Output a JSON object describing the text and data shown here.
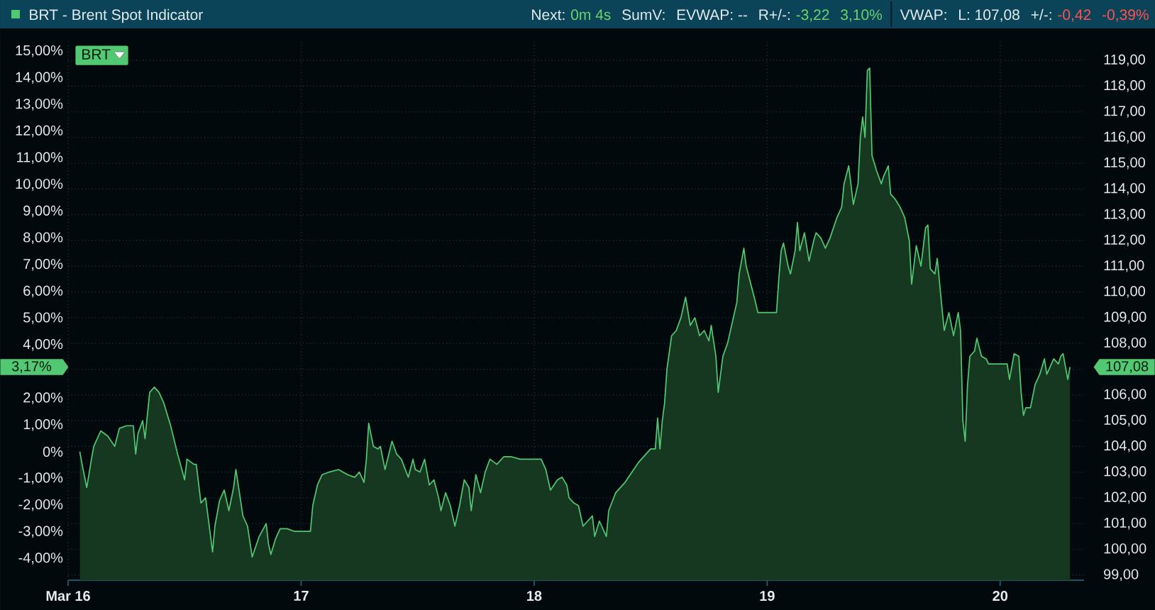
{
  "chart_data": {
    "type": "area",
    "title": "BRT - Brent Spot Indicator",
    "annotations": [
      "Next:",
      "0m 4s",
      "SumV:",
      "EVWAP: --",
      "R+/-:",
      "-3,22",
      "3,10%",
      "VWAP:",
      "L: 107,08",
      "+/-:",
      "-0,42",
      "-0,39%",
      "3,17%",
      "107,08"
    ],
    "x": [
      16.05,
      16.06,
      16.08,
      16.1,
      16.11,
      16.14,
      16.17,
      16.2,
      16.22,
      16.25,
      16.28,
      16.29,
      16.3,
      16.32,
      16.33,
      16.35,
      16.37,
      16.39,
      16.41,
      16.44,
      16.47,
      16.5,
      16.51,
      16.54,
      16.55,
      16.57,
      16.59,
      16.62,
      16.63,
      16.65,
      16.67,
      16.69,
      16.71,
      16.72,
      16.74,
      16.75,
      16.77,
      16.79,
      16.82,
      16.85,
      16.86,
      16.87,
      16.89,
      16.91,
      16.94,
      16.97,
      17.04,
      17.05,
      17.07,
      17.09,
      17.12,
      17.16,
      17.2,
      17.23,
      17.25,
      17.27,
      17.28,
      17.29,
      17.31,
      17.33,
      17.34,
      17.36,
      17.39,
      17.41,
      17.43,
      17.46,
      17.48,
      17.49,
      17.51,
      17.53,
      17.55,
      17.57,
      17.59,
      17.6,
      17.62,
      17.64,
      17.66,
      17.68,
      17.7,
      17.72,
      17.73,
      17.75,
      17.77,
      17.79,
      17.81,
      17.84,
      17.87,
      17.9,
      17.94,
      18.03,
      18.05,
      18.07,
      18.1,
      18.12,
      18.14,
      18.15,
      18.17,
      18.19,
      18.21,
      18.23,
      18.25,
      18.26,
      18.28,
      18.31,
      18.32,
      18.35,
      18.39,
      18.42,
      18.45,
      18.48,
      18.5,
      18.52,
      18.53,
      18.54,
      18.55,
      18.56,
      18.57,
      18.59,
      18.61,
      18.63,
      18.65,
      18.67,
      18.69,
      18.71,
      18.73,
      18.75,
      18.76,
      18.78,
      18.79,
      18.81,
      18.83,
      18.85,
      18.87,
      18.88,
      18.9,
      18.91,
      18.93,
      18.95,
      18.96,
      19.04,
      19.05,
      19.06,
      19.07,
      19.09,
      19.1,
      19.12,
      19.13,
      19.14,
      19.16,
      19.18,
      19.2,
      19.21,
      19.23,
      19.25,
      19.27,
      19.3,
      19.32,
      19.33,
      19.35,
      19.37,
      19.39,
      19.4,
      19.41,
      19.42,
      19.43,
      19.44,
      19.45,
      19.47,
      19.49,
      19.5,
      19.52,
      19.53,
      19.55,
      19.57,
      19.59,
      19.61,
      19.62,
      19.64,
      19.66,
      19.68,
      19.69,
      19.7,
      19.72,
      19.73,
      19.75,
      19.76,
      19.78,
      19.8,
      19.82,
      19.83,
      19.84,
      19.85,
      19.86,
      19.87,
      19.89,
      19.9,
      19.92,
      19.94,
      19.95,
      20.03,
      20.04,
      20.06,
      20.08,
      20.09,
      20.1,
      20.11,
      20.13,
      20.15,
      20.17,
      20.19,
      20.2,
      20.23,
      20.25,
      20.26,
      20.27,
      20.29,
      20.3
    ],
    "series": [
      {
        "name": "BRT",
        "color": "#52c873",
        "axis": "y2",
        "values": [
          103.8,
          103.3,
          102.4,
          103.5,
          104.0,
          104.6,
          104.4,
          104.0,
          104.7,
          104.8,
          104.8,
          103.7,
          104.5,
          105.0,
          104.3,
          106.1,
          106.3,
          106.1,
          105.7,
          104.8,
          103.7,
          102.7,
          103.5,
          103.3,
          103.3,
          101.8,
          102.0,
          99.9,
          100.9,
          101.9,
          102.3,
          101.5,
          102.4,
          103.1,
          101.9,
          101.3,
          100.9,
          99.7,
          100.5,
          101.0,
          100.2,
          99.8,
          100.4,
          100.8,
          100.8,
          100.7,
          100.7,
          101.7,
          102.5,
          102.9,
          103.0,
          103.1,
          102.9,
          102.8,
          103.0,
          102.6,
          103.5,
          104.9,
          104.0,
          103.9,
          104.0,
          103.1,
          104.2,
          103.7,
          103.5,
          102.8,
          103.5,
          103.1,
          103.0,
          103.5,
          102.5,
          102.7,
          102.0,
          101.5,
          102.2,
          101.7,
          100.9,
          101.7,
          102.7,
          102.4,
          101.5,
          102.9,
          102.2,
          103.0,
          103.5,
          103.3,
          103.6,
          103.6,
          103.5,
          103.5,
          103.1,
          102.3,
          102.7,
          102.8,
          102.5,
          102.0,
          101.8,
          101.7,
          100.9,
          101.1,
          101.3,
          100.5,
          101.1,
          100.5,
          101.5,
          102.2,
          102.6,
          103.0,
          103.4,
          103.7,
          103.9,
          103.9,
          105.1,
          103.9,
          105.0,
          105.7,
          107.0,
          108.3,
          108.5,
          109.0,
          109.8,
          108.7,
          109.0,
          108.3,
          108.5,
          108.1,
          108.7,
          107.5,
          106.1,
          107.5,
          108.0,
          108.8,
          109.6,
          110.7,
          111.7,
          111.0,
          110.3,
          109.6,
          109.2,
          109.2,
          110.5,
          111.6,
          111.9,
          111.0,
          110.7,
          111.6,
          112.7,
          111.6,
          112.3,
          111.2,
          112.0,
          112.3,
          112.1,
          111.7,
          112.1,
          112.9,
          113.3,
          114.2,
          114.9,
          113.4,
          114.2,
          116.0,
          116.8,
          116.0,
          118.6,
          118.7,
          115.3,
          114.7,
          114.2,
          114.5,
          114.9,
          113.8,
          113.6,
          113.3,
          112.9,
          112.0,
          110.3,
          111.8,
          111.0,
          112.5,
          112.6,
          110.9,
          110.7,
          111.3,
          109.4,
          108.5,
          109.2,
          108.3,
          109.2,
          108.5,
          105.0,
          104.2,
          106.4,
          107.5,
          107.7,
          108.2,
          107.5,
          107.4,
          107.2,
          107.2,
          106.6,
          107.6,
          107.5,
          106.1,
          105.2,
          105.5,
          105.5,
          106.4,
          106.8,
          107.4,
          106.8,
          107.4,
          107.2,
          107.5,
          107.6,
          106.6,
          107.08
        ]
      }
    ],
    "xlim": [
      16,
      20.36
    ],
    "xticks": [
      {
        "value": 16,
        "label": "Mar 16"
      },
      17,
      18,
      19,
      20
    ],
    "ylim": [
      -4.81,
      15.43
    ],
    "yticks": [
      {
        "value": -4,
        "label": "-4,00%"
      },
      {
        "value": -3,
        "label": "-3,00%"
      },
      {
        "value": -2,
        "label": "-2,00%"
      },
      {
        "value": -1,
        "label": "-1,00%"
      },
      {
        "value": 0,
        "label": "0%"
      },
      {
        "value": 1,
        "label": "1,00%"
      },
      {
        "value": 2,
        "label": "2,00%"
      },
      {
        "value": 4,
        "label": "4,00%"
      },
      {
        "value": 5,
        "label": "5,00%"
      },
      {
        "value": 6,
        "label": "6,00%"
      },
      {
        "value": 7,
        "label": "7,00%"
      },
      {
        "value": 8,
        "label": "8,00%"
      },
      {
        "value": 9,
        "label": "9,00%"
      },
      {
        "value": 10,
        "label": "10,00%"
      },
      {
        "value": 11,
        "label": "11,00%"
      },
      {
        "value": 12,
        "label": "12,00%"
      },
      {
        "value": 13,
        "label": "13,00%"
      },
      {
        "value": 14,
        "label": "14,00%"
      },
      {
        "value": 15,
        "label": "15,00%"
      }
    ],
    "y2lim": [
      98.8,
      119.8
    ],
    "y2ticks": [
      {
        "value": 99,
        "label": "99,00"
      },
      {
        "value": 100,
        "label": "100,00"
      },
      {
        "value": 101,
        "label": "101,00"
      },
      {
        "value": 102,
        "label": "102,00"
      },
      {
        "value": 103,
        "label": "103,00"
      },
      {
        "value": 104,
        "label": "104,00"
      },
      {
        "value": 105,
        "label": "105,00"
      },
      {
        "value": 106,
        "label": "106,00"
      },
      {
        "value": 107,
        "label": null
      },
      {
        "value": 108,
        "label": "108,00"
      },
      {
        "value": 109,
        "label": "109,00"
      },
      {
        "value": 110,
        "label": "110,00"
      },
      {
        "value": 111,
        "label": "111,00"
      },
      {
        "value": 112,
        "label": "112,00"
      },
      {
        "value": 113,
        "label": "113,00"
      },
      {
        "value": 114,
        "label": "114,00"
      },
      {
        "value": 115,
        "label": "115,00"
      },
      {
        "value": 116,
        "label": "116,00"
      },
      {
        "value": 117,
        "label": "117,00"
      },
      {
        "value": 118,
        "label": "118,00"
      },
      {
        "value": 119,
        "label": "119,00"
      }
    ],
    "grid": true,
    "legend": "top left",
    "marker": "none"
  }
}
